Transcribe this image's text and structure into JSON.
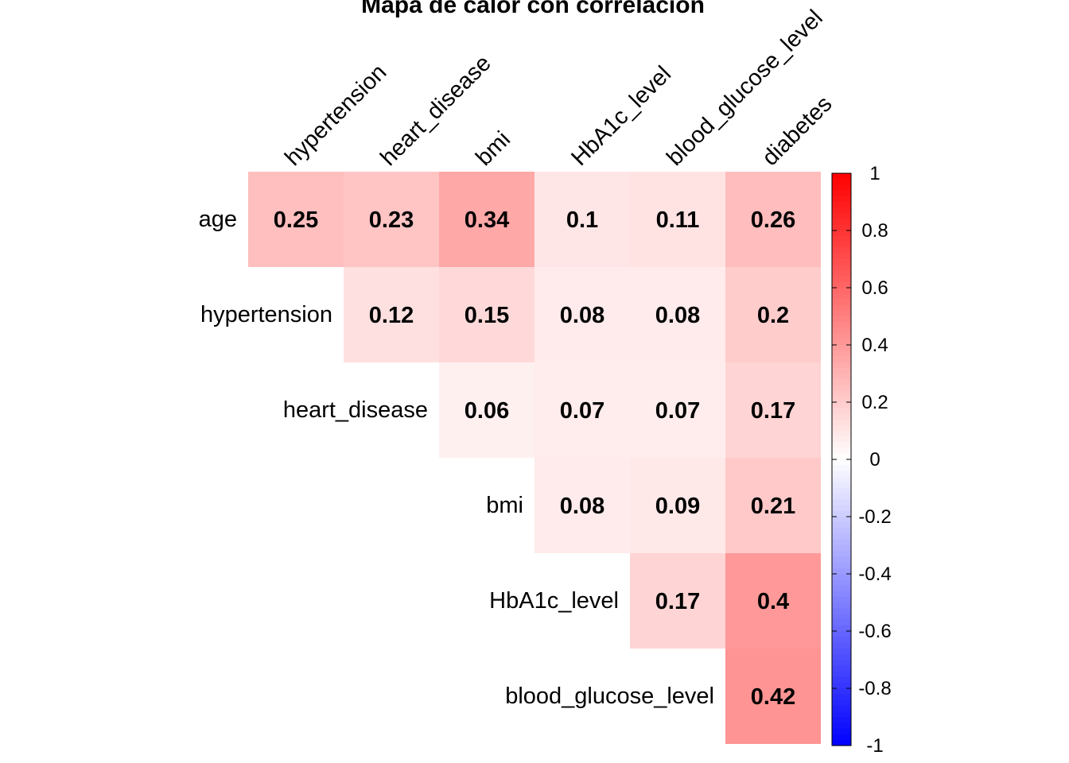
{
  "chart_data": {
    "type": "heatmap",
    "title": "Mapa de calor con correlación",
    "columns": [
      "hypertension",
      "heart_disease",
      "bmi",
      "HbA1c_level",
      "blood_glucose_level",
      "diabetes"
    ],
    "rows": [
      "age",
      "hypertension",
      "heart_disease",
      "bmi",
      "HbA1c_level",
      "blood_glucose_level"
    ],
    "values": [
      [
        0.25,
        0.23,
        0.34,
        0.1,
        0.11,
        0.26
      ],
      [
        null,
        0.12,
        0.15,
        0.08,
        0.08,
        0.2
      ],
      [
        null,
        null,
        0.06,
        0.07,
        0.07,
        0.17
      ],
      [
        null,
        null,
        null,
        0.08,
        0.09,
        0.21
      ],
      [
        null,
        null,
        null,
        null,
        0.17,
        0.4
      ],
      [
        null,
        null,
        null,
        null,
        null,
        0.42
      ]
    ],
    "color_scale": {
      "min": -1,
      "max": 1,
      "low_color": "#0000ff",
      "mid_color": "#ffffff",
      "high_color": "#ff0000"
    },
    "legend_ticks": [
      1,
      0.8,
      0.6,
      0.4,
      0.2,
      0,
      -0.2,
      -0.4,
      -0.6,
      -0.8,
      -1
    ],
    "legend_placement": "right",
    "grid": false
  }
}
